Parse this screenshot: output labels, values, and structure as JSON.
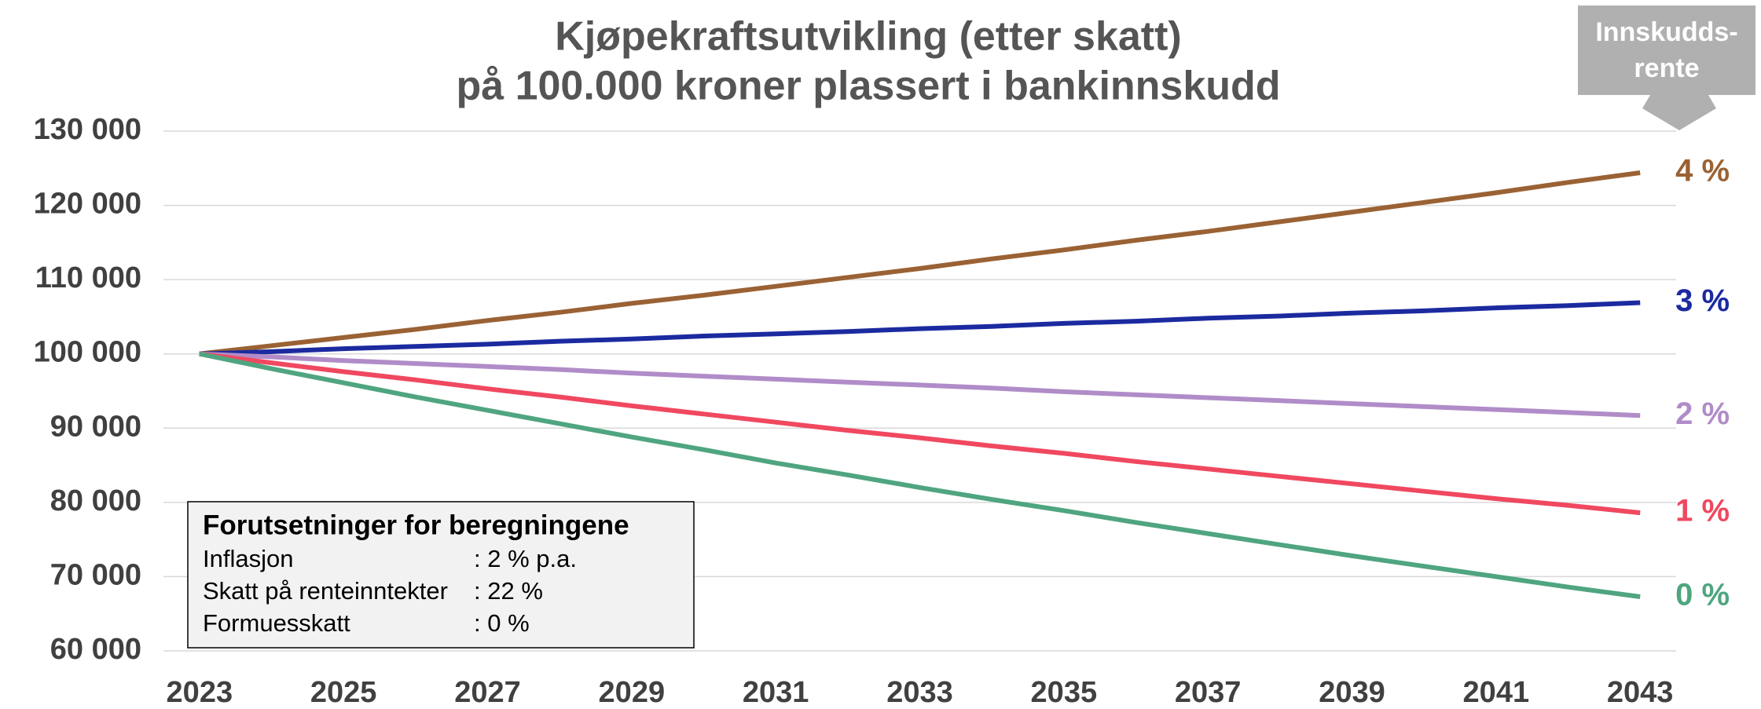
{
  "chart_data": {
    "type": "line",
    "title": "Kjøpekraftsutvikling (etter skatt)",
    "subtitle": "på 100.000 kroner plassert i bankinnskudd",
    "categories": [
      "2023",
      null,
      "2025",
      null,
      "2027",
      null,
      "2029",
      null,
      "2031",
      null,
      "2033",
      null,
      "2035",
      null,
      "2037",
      null,
      "2039",
      null,
      "2041",
      null,
      "2043"
    ],
    "ylim": [
      60000,
      130000
    ],
    "yticks": [
      {
        "value": 60000,
        "label": "60 000"
      },
      {
        "value": 70000,
        "label": "70 000"
      },
      {
        "value": 80000,
        "label": "80 000"
      },
      {
        "value": 90000,
        "label": "90 000"
      },
      {
        "value": 100000,
        "label": "100 000"
      },
      {
        "value": 110000,
        "label": "110 000"
      },
      {
        "value": 120000,
        "label": "120 000"
      },
      {
        "value": 130000,
        "label": "130 000"
      }
    ],
    "grid": true,
    "series": [
      {
        "name": "4 %",
        "color": "#9a6234",
        "values": [
          100000,
          101100,
          102200,
          103300,
          104500,
          105600,
          106800,
          107900,
          109100,
          110300,
          111500,
          112800,
          114000,
          115300,
          116500,
          117800,
          119100,
          120400,
          121700,
          123100,
          124400
        ]
      },
      {
        "name": "3 %",
        "color": "#1c2aa0",
        "values": [
          100000,
          100300,
          100700,
          101000,
          101300,
          101700,
          102000,
          102400,
          102700,
          103000,
          103400,
          103700,
          104100,
          104400,
          104800,
          105100,
          105500,
          105800,
          106200,
          106500,
          106900
        ]
      },
      {
        "name": "2 %",
        "color": "#b08cc8",
        "values": [
          100000,
          99600,
          99100,
          98700,
          98300,
          97900,
          97400,
          97000,
          96600,
          96200,
          95800,
          95400,
          94900,
          94500,
          94100,
          93700,
          93300,
          92900,
          92500,
          92100,
          91700
        ]
      },
      {
        "name": "1 %",
        "color": "#f04860",
        "values": [
          100000,
          98800,
          97600,
          96500,
          95300,
          94200,
          93000,
          91900,
          90800,
          89700,
          88700,
          87600,
          86600,
          85500,
          84500,
          83500,
          82500,
          81500,
          80500,
          79600,
          78600
        ]
      },
      {
        "name": "0 %",
        "color": "#4fa57f",
        "values": [
          100000,
          98000,
          96100,
          94200,
          92400,
          90600,
          88800,
          87100,
          85300,
          83700,
          82000,
          80400,
          78900,
          77300,
          75800,
          74300,
          72800,
          71400,
          70000,
          68600,
          67300
        ]
      }
    ],
    "annotation": [
      "Innskudds-",
      "rente"
    ],
    "notes": {
      "heading": "Forutsetninger for beregningene",
      "rows": [
        [
          "Inflasjon",
          ": 2 % p.a."
        ],
        [
          "Skatt på renteinntekter",
          ": 22 %"
        ],
        [
          "Formuesskatt",
          ": 0 %"
        ]
      ]
    }
  }
}
